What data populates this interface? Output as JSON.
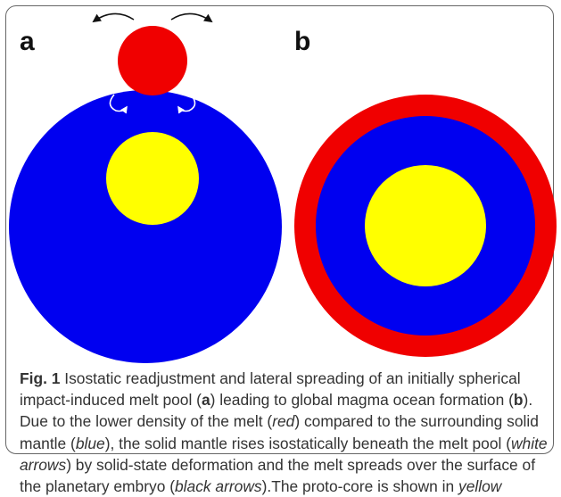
{
  "figure": {
    "panels": [
      {
        "label": "a"
      },
      {
        "label": "b"
      }
    ],
    "caption": {
      "label": "Fig. 1",
      "runs": [
        {
          "text": " Isostatic readjustment and lateral spreading of an initially spherical impact-induced melt pool (",
          "style": "normal"
        },
        {
          "text": "a",
          "style": "bold"
        },
        {
          "text": ") leading to global magma ocean formation (",
          "style": "normal"
        },
        {
          "text": "b",
          "style": "bold"
        },
        {
          "text": "). Due to the lower density of the melt (",
          "style": "normal"
        },
        {
          "text": "red",
          "style": "italic"
        },
        {
          "text": ") compared to the surrounding solid mantle (",
          "style": "normal"
        },
        {
          "text": "blue",
          "style": "italic"
        },
        {
          "text": "), the solid mantle rises isostatically beneath the melt pool (",
          "style": "normal"
        },
        {
          "text": "white arrows",
          "style": "italic"
        },
        {
          "text": ") by solid-state deformation and the melt spreads over the surface of the planetary embryo (",
          "style": "normal"
        },
        {
          "text": "black arrows",
          "style": "italic"
        },
        {
          "text": ").The proto-core is shown in ",
          "style": "normal"
        },
        {
          "text": "yellow",
          "style": "italic"
        }
      ]
    }
  }
}
